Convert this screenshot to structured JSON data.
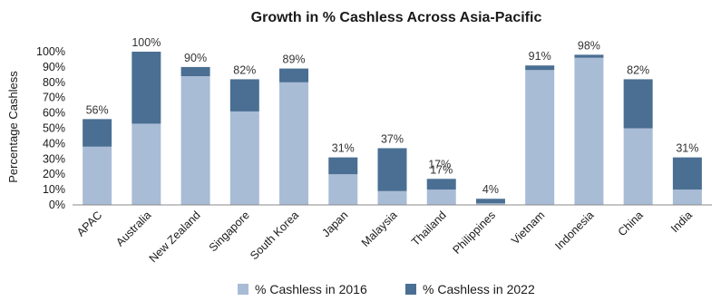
{
  "chart_data": {
    "type": "bar",
    "stacked": true,
    "title": "Growth in % Cashless Across Asia-Pacific",
    "ylabel": "Percentage Cashless",
    "xlabel": "",
    "ylim": [
      0,
      100
    ],
    "yticks": [
      "0%",
      "10%",
      "20%",
      "30%",
      "40%",
      "50%",
      "60%",
      "70%",
      "80%",
      "90%",
      "100%"
    ],
    "categories": [
      "APAC",
      "Australia",
      "New Zealand",
      "Singapore",
      "South Korea",
      "Japan",
      "Malaysia",
      "Thailand",
      "Philippines",
      "Vietnam",
      "Indonesia",
      "China",
      "India"
    ],
    "series": [
      {
        "name": "% Cashless in 2016",
        "values": [
          38,
          53,
          84,
          61,
          80,
          20,
          9,
          10,
          1,
          88,
          96,
          50,
          10
        ],
        "color": "#a9bcd6"
      },
      {
        "name": "% Cashless in 2022",
        "values": [
          18,
          47,
          6,
          21,
          9,
          11,
          28,
          7,
          3,
          3,
          2,
          32,
          21
        ],
        "color": "#4a6f93"
      }
    ],
    "data_labels": [
      "56%",
      "100%",
      "90%",
      "82%",
      "89%",
      "31%",
      "37%",
      "17%",
      "4%",
      "91%",
      "98%",
      "82%",
      "31%"
    ],
    "extra_labels": [
      {
        "category": "Thailand",
        "text": "17%"
      }
    ],
    "legend_position": "bottom",
    "grid": false
  }
}
